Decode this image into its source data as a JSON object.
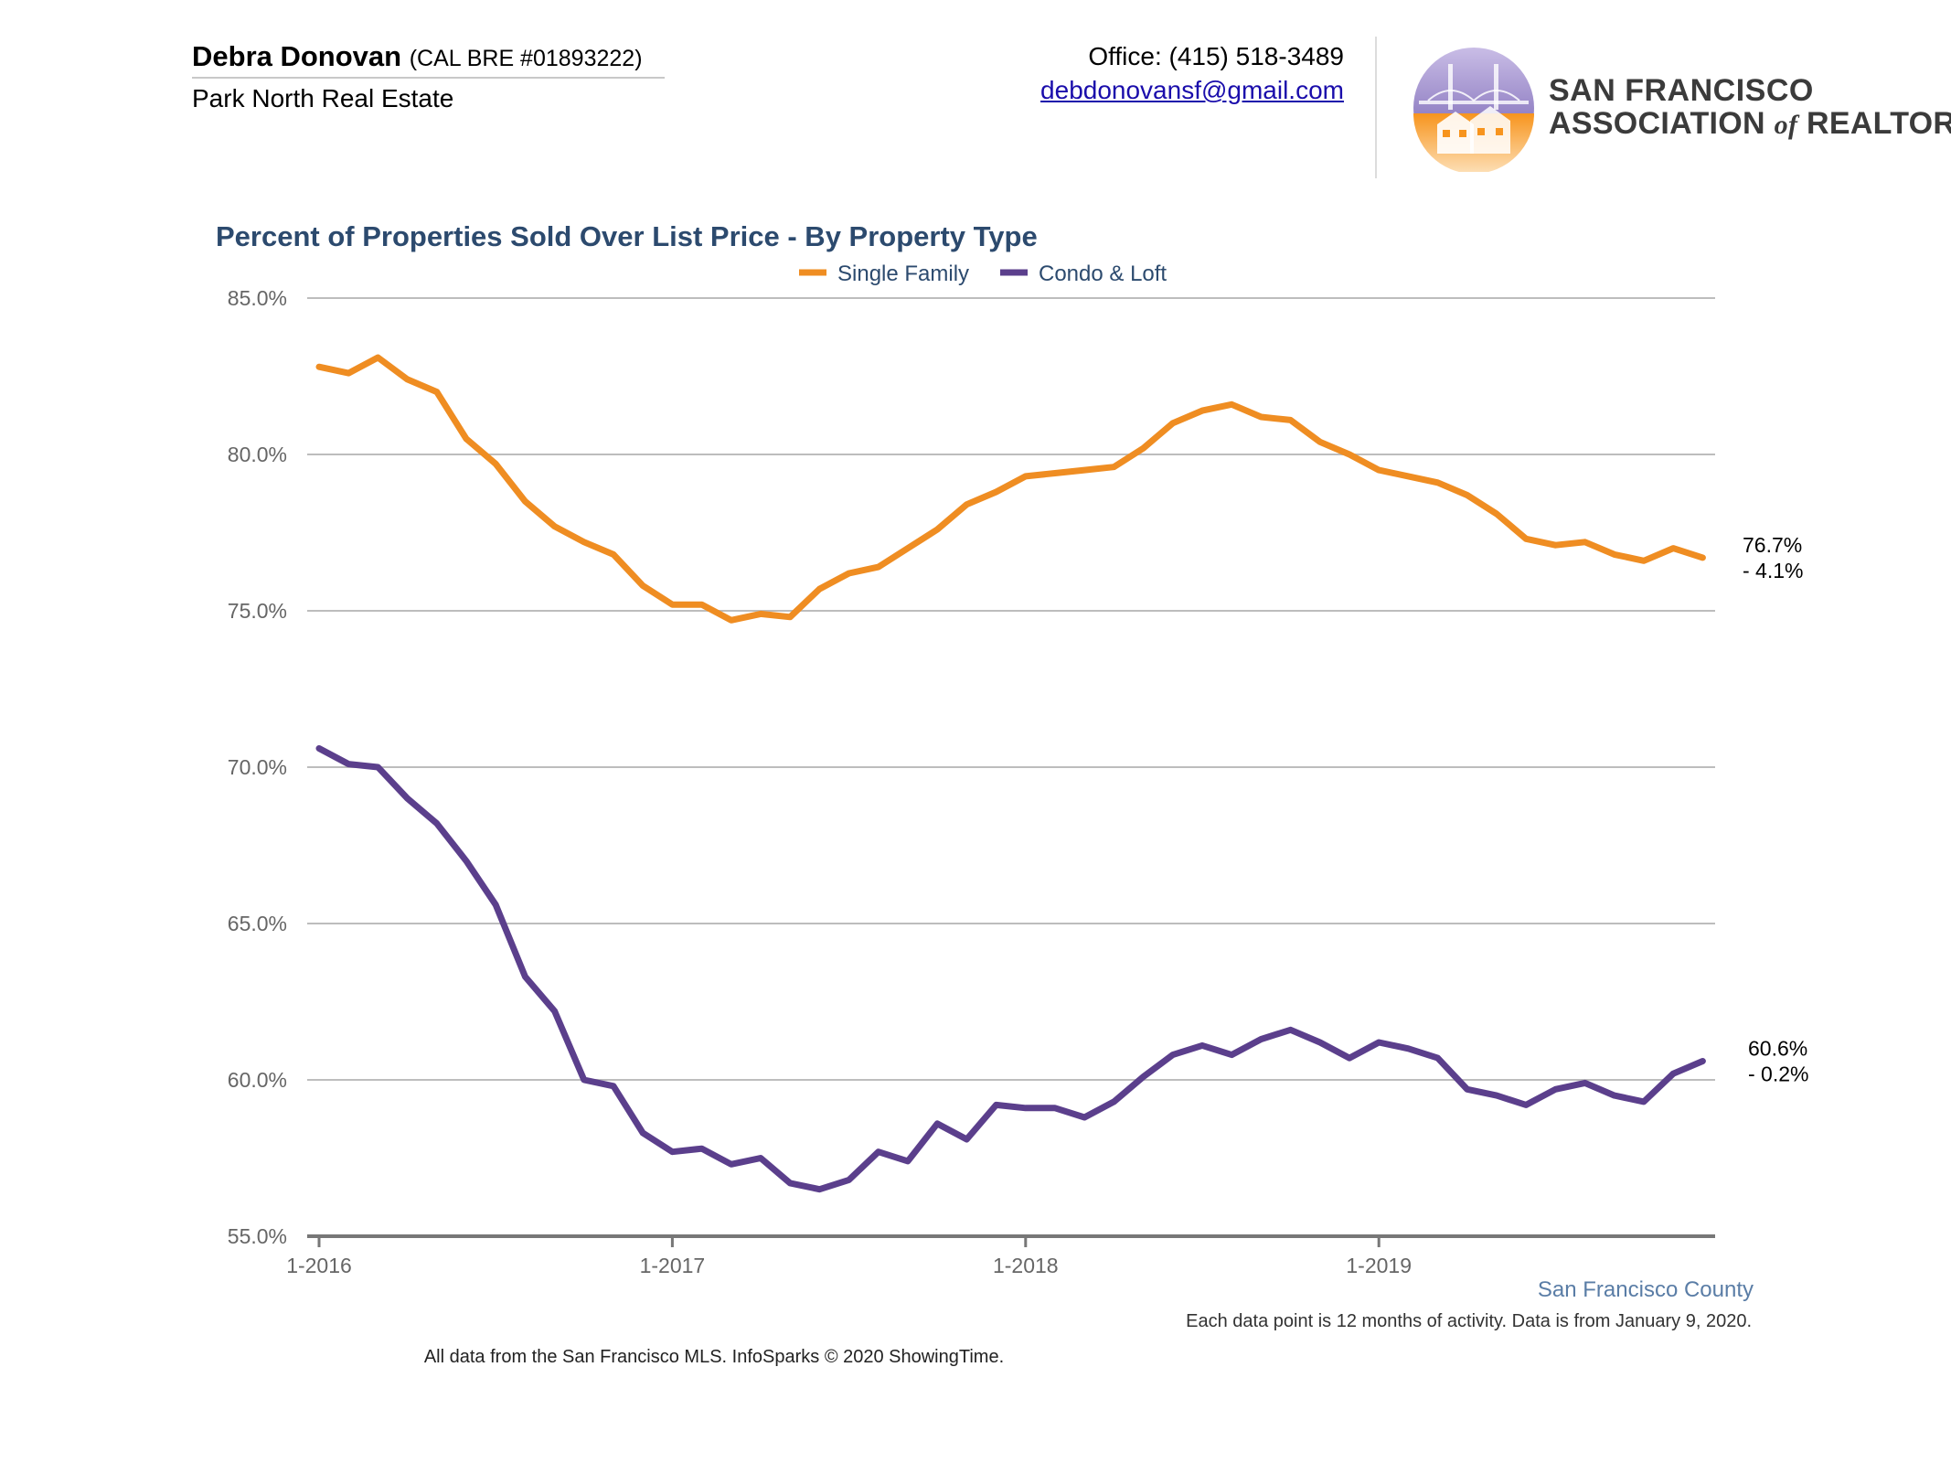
{
  "header": {
    "agent_name": "Debra Donovan",
    "license": "(CAL BRE #01893222)",
    "company": "Park North Real Estate",
    "office": "Office: (415) 518-3489",
    "email": "debdonovansf@gmail.com"
  },
  "logo": {
    "line1": "SAN FRANCISCO",
    "line2_a": "ASSOCIATION ",
    "line2_of": "of",
    "line2_b": " REALTORS",
    "registered": "®",
    "icon": "golden-gate-bridge-houses-logo",
    "colors": {
      "purple": "#5b4a9b",
      "orange": "#f7941d",
      "text": "#3b3b3b"
    }
  },
  "chart_data": {
    "type": "line",
    "title": "Percent of Properties Sold Over List Price - By Property Type",
    "xlabel": "",
    "ylabel": "",
    "ylim": [
      55,
      85
    ],
    "yticks": [
      "85.0%",
      "80.0%",
      "75.0%",
      "70.0%",
      "65.0%",
      "60.0%",
      "55.0%"
    ],
    "ytick_values": [
      85,
      80,
      75,
      70,
      65,
      60,
      55
    ],
    "x": [
      "1-2016",
      "2-2016",
      "3-2016",
      "4-2016",
      "5-2016",
      "6-2016",
      "7-2016",
      "8-2016",
      "9-2016",
      "10-2016",
      "11-2016",
      "12-2016",
      "1-2017",
      "2-2017",
      "3-2017",
      "4-2017",
      "5-2017",
      "6-2017",
      "7-2017",
      "8-2017",
      "9-2017",
      "10-2017",
      "11-2017",
      "12-2017",
      "1-2018",
      "2-2018",
      "3-2018",
      "4-2018",
      "5-2018",
      "6-2018",
      "7-2018",
      "8-2018",
      "9-2018",
      "10-2018",
      "11-2018",
      "12-2018",
      "1-2019",
      "2-2019",
      "3-2019",
      "4-2019",
      "5-2019",
      "6-2019",
      "7-2019",
      "8-2019",
      "9-2019",
      "10-2019",
      "11-2019",
      "12-2019"
    ],
    "xticks": [
      "1-2016",
      "1-2017",
      "1-2018",
      "1-2019"
    ],
    "legend_position": "top-center",
    "grid": true,
    "series": [
      {
        "name": "Single Family",
        "color": "#ef8d22",
        "values": [
          82.8,
          82.6,
          83.1,
          82.4,
          82.0,
          80.5,
          79.7,
          78.5,
          77.7,
          77.2,
          76.8,
          75.8,
          75.2,
          75.2,
          74.7,
          74.9,
          74.8,
          75.7,
          76.2,
          76.4,
          77.0,
          77.6,
          78.4,
          78.8,
          79.3,
          79.4,
          79.5,
          79.6,
          80.2,
          81.0,
          81.4,
          81.6,
          81.2,
          81.1,
          80.4,
          80.0,
          79.5,
          79.3,
          79.1,
          78.7,
          78.1,
          77.3,
          77.1,
          77.2,
          76.8,
          76.6,
          77.0,
          76.7
        ],
        "end_label": "76.7%",
        "end_change": "- 4.1%"
      },
      {
        "name": "Condo & Loft",
        "color": "#5b3f8c",
        "values": [
          70.6,
          70.1,
          70.0,
          69.0,
          68.2,
          67.0,
          65.6,
          63.3,
          62.2,
          60.0,
          59.8,
          58.3,
          57.7,
          57.8,
          57.3,
          57.5,
          56.7,
          56.5,
          56.8,
          57.7,
          57.4,
          58.6,
          58.1,
          59.2,
          59.1,
          59.1,
          58.8,
          59.3,
          60.1,
          60.8,
          61.1,
          60.8,
          61.3,
          61.6,
          61.2,
          60.7,
          61.2,
          61.0,
          60.7,
          59.7,
          59.5,
          59.2,
          59.7,
          59.9,
          59.5,
          59.3,
          60.2,
          60.6
        ],
        "end_label": "60.6%",
        "end_change": "- 0.2%"
      }
    ]
  },
  "footer": {
    "county": "San Francisco County",
    "note": "Each data point is 12 months of activity. Data is from January 9, 2020.",
    "source": "All data from the San Francisco MLS. InfoSparks © 2020 ShowingTime."
  }
}
